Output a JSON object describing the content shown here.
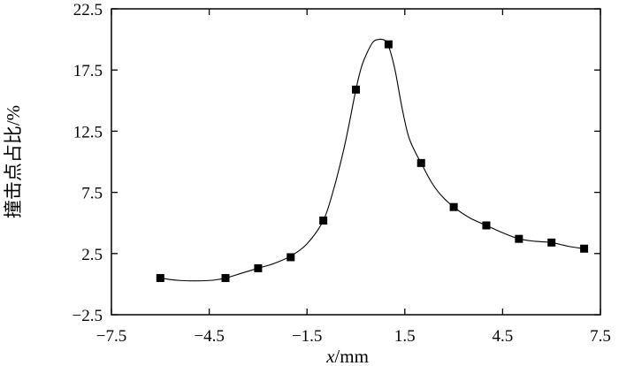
{
  "chart_data": {
    "type": "scatter",
    "title": "",
    "xlabel_var": "x",
    "xlabel_unit": "/mm",
    "ylabel": "撞击点占比/%",
    "xlim": [
      -7.5,
      7.5
    ],
    "ylim": [
      -2.5,
      22.5
    ],
    "xticks": [
      "−7.5",
      "−4.5",
      "−1.5",
      "1.5",
      "4.5",
      "7.5"
    ],
    "yticks": [
      "22.5",
      "17.5",
      "12.5",
      "7.5",
      "2.5",
      "−2.5"
    ],
    "grid": false,
    "series": [
      {
        "markers": "filled-square",
        "x": [
          -6,
          -4,
          -3,
          -2,
          -1,
          0,
          1,
          2,
          3,
          4,
          5,
          6,
          7
        ],
        "y": [
          0.5,
          0.5,
          1.3,
          2.2,
          5.2,
          15.9,
          19.6,
          9.9,
          6.3,
          4.8,
          3.7,
          3.4,
          2.9
        ]
      }
    ],
    "curve": {
      "style": "smooth-fit",
      "x": [
        -6,
        -5.4,
        -4.5,
        -4,
        -3.5,
        -3,
        -2.5,
        -2,
        -1.5,
        -1,
        -0.7,
        -0.4,
        -0.2,
        0,
        0.2,
        0.5,
        0.7,
        0.8,
        0.9,
        1,
        1.2,
        1.4,
        1.6,
        1.8,
        2,
        2.3,
        2.6,
        3,
        3.5,
        4,
        4.5,
        5,
        5.5,
        6,
        6.5,
        7
      ],
      "y": [
        0.5,
        0.3,
        0.3,
        0.5,
        0.9,
        1.3,
        1.7,
        2.3,
        3.3,
        5.2,
        7.6,
        10.7,
        13.2,
        15.9,
        18.0,
        19.7,
        20.0,
        20.0,
        19.9,
        19.5,
        17.5,
        14.6,
        12.2,
        10.9,
        9.9,
        8.4,
        7.3,
        6.3,
        5.4,
        4.8,
        4.2,
        3.7,
        3.5,
        3.4,
        3.1,
        2.9
      ]
    }
  }
}
